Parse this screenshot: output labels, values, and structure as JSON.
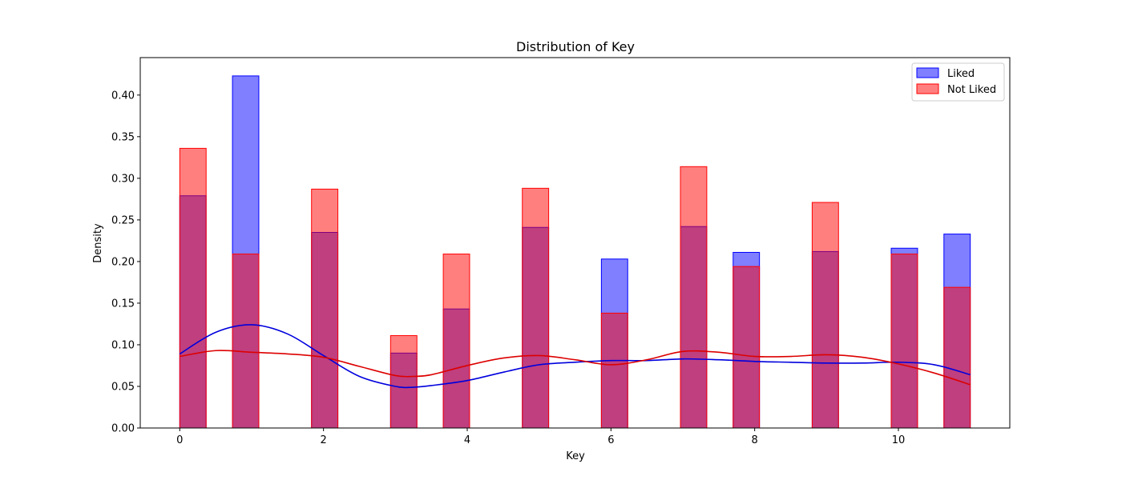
{
  "chart_data": {
    "type": "bar",
    "title": "Distribution of Key",
    "xlabel": "Key",
    "ylabel": "Density",
    "xlim": [
      -0.55,
      11.55
    ],
    "ylim": [
      0,
      0.445
    ],
    "xticks": [
      0,
      2,
      4,
      6,
      8,
      10
    ],
    "yticks": [
      0.0,
      0.05,
      0.1,
      0.15,
      0.2,
      0.25,
      0.3,
      0.35,
      0.4
    ],
    "ytick_labels": [
      "0.00",
      "0.05",
      "0.10",
      "0.15",
      "0.20",
      "0.25",
      "0.30",
      "0.35",
      "0.40"
    ],
    "grid": false,
    "legend_position": "top-right",
    "bin_edges": [
      0,
      0.3667,
      0.7333,
      1.1,
      1.4667,
      1.8333,
      2.2,
      2.5667,
      2.9333,
      3.3,
      3.6667,
      4.0333,
      4.4,
      4.7667,
      5.1333,
      5.5,
      5.8667,
      6.2333,
      6.6,
      6.9667,
      7.3333,
      7.7,
      8.0667,
      8.4333,
      8.8,
      9.1667,
      9.5333,
      9.9,
      10.2667,
      10.6333,
      11.0
    ],
    "series": [
      {
        "name": "Liked",
        "color": "#0000ff",
        "fill": "rgba(0,0,255,0.5)",
        "values": [
          0.279,
          0,
          0.423,
          0,
          0,
          0.235,
          0,
          0,
          0.09,
          0,
          0.143,
          0,
          0,
          0.241,
          0,
          0,
          0.203,
          0,
          0,
          0.242,
          0,
          0.211,
          0,
          0,
          0.212,
          0,
          0,
          0.216,
          0,
          0.233
        ],
        "kde": {
          "x": [
            0,
            0.5,
            1,
            1.5,
            2,
            2.5,
            3,
            3.25,
            3.5,
            4,
            4.5,
            5,
            5.5,
            6,
            6.5,
            7,
            7.5,
            8,
            8.5,
            9,
            9.5,
            10,
            10.5,
            11
          ],
          "y": [
            0.089,
            0.115,
            0.124,
            0.113,
            0.087,
            0.062,
            0.05,
            0.049,
            0.051,
            0.057,
            0.067,
            0.076,
            0.079,
            0.081,
            0.081,
            0.083,
            0.082,
            0.08,
            0.079,
            0.078,
            0.078,
            0.079,
            0.076,
            0.064
          ]
        }
      },
      {
        "name": "Not Liked",
        "color": "#ff0000",
        "fill": "rgba(255,0,0,0.5)",
        "values": [
          0.336,
          0,
          0.209,
          0,
          0,
          0.287,
          0,
          0,
          0.111,
          0,
          0.209,
          0,
          0,
          0.288,
          0,
          0,
          0.138,
          0,
          0,
          0.314,
          0,
          0.194,
          0,
          0,
          0.271,
          0,
          0,
          0.209,
          0,
          0.169
        ],
        "kde": {
          "x": [
            0,
            0.5,
            1,
            1.5,
            2,
            2.5,
            3,
            3.25,
            3.5,
            4,
            4.5,
            5,
            5.5,
            6,
            6.5,
            7,
            7.5,
            8,
            8.5,
            9,
            9.5,
            10,
            10.5,
            11
          ],
          "y": [
            0.086,
            0.093,
            0.091,
            0.089,
            0.085,
            0.074,
            0.063,
            0.062,
            0.064,
            0.075,
            0.084,
            0.087,
            0.082,
            0.076,
            0.082,
            0.092,
            0.091,
            0.086,
            0.086,
            0.088,
            0.085,
            0.077,
            0.066,
            0.052
          ]
        }
      }
    ]
  }
}
